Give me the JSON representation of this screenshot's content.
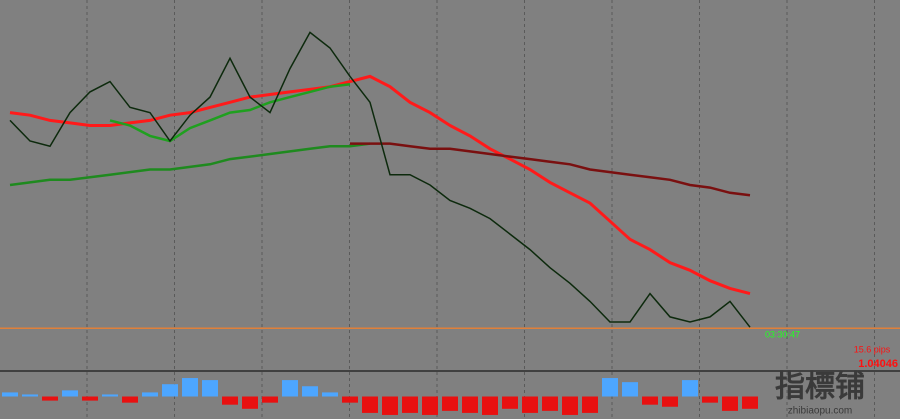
{
  "chart_data": [
    {
      "type": "line",
      "x": [
        0,
        1,
        2,
        3,
        4,
        5,
        6,
        7,
        8,
        9,
        10,
        11,
        12,
        13,
        14,
        15,
        16,
        17,
        18,
        19,
        20,
        21,
        22,
        23,
        24,
        25,
        26,
        27,
        28,
        29,
        30,
        31,
        32,
        33,
        34,
        35,
        36,
        37
      ],
      "xlim": [
        -0.5,
        44.5
      ],
      "ylim": [
        1.039,
        1.053
      ],
      "grid": true,
      "series": [
        {
          "color": "#ff1a1a",
          "width": 3,
          "values": [
            1.0488,
            1.0487,
            1.0485,
            1.0484,
            1.0483,
            1.0483,
            1.0484,
            1.0485,
            1.0487,
            1.0488,
            1.049,
            1.0492,
            1.0494,
            1.0495,
            1.0496,
            1.0497,
            1.0498,
            1.05,
            1.0502,
            1.0498,
            1.0492,
            1.0488,
            1.0483,
            1.0479,
            1.0474,
            1.047,
            1.0466,
            1.0461,
            1.0457,
            1.0453,
            1.0446,
            1.0439,
            1.0435,
            1.043,
            1.0427,
            1.0423,
            1.042,
            1.0418
          ]
        },
        {
          "color": "#1f8a1f",
          "width": 2.5,
          "values": [
            1.046,
            1.0461,
            1.0462,
            1.0462,
            1.0463,
            1.0464,
            1.0465,
            1.0466,
            1.0466,
            1.0467,
            1.0468,
            1.047,
            1.0471,
            1.0472,
            1.0473,
            1.0474,
            1.0475,
            1.0475,
            1.0476,
            null,
            null,
            null,
            null,
            null,
            null,
            null,
            null,
            null,
            null,
            null,
            null,
            null,
            null,
            null,
            null,
            null,
            null,
            null
          ]
        },
        {
          "color": "#7a1010",
          "width": 2.5,
          "values": [
            null,
            null,
            null,
            null,
            null,
            null,
            null,
            null,
            null,
            null,
            null,
            null,
            null,
            null,
            null,
            null,
            null,
            1.0476,
            1.0476,
            1.0476,
            1.0475,
            1.0474,
            1.0474,
            1.0473,
            1.0472,
            1.0471,
            1.047,
            1.0469,
            1.0468,
            1.0466,
            1.0465,
            1.0464,
            1.0463,
            1.0462,
            1.046,
            1.0459,
            1.0457,
            1.0456
          ]
        },
        {
          "color": "#1fa01f",
          "width": 2.5,
          "values": [
            null,
            null,
            null,
            null,
            null,
            1.0485,
            1.0483,
            1.0479,
            1.0477,
            1.0482,
            1.0485,
            1.0488,
            1.0489,
            1.0492,
            1.0494,
            1.0496,
            1.0498,
            1.0499,
            null,
            null,
            null,
            null,
            null,
            null,
            null,
            null,
            null,
            null,
            null,
            null,
            null,
            null,
            null,
            null,
            null,
            null,
            null,
            null
          ]
        },
        {
          "color": "#0d2a0d",
          "width": 1.5,
          "values": [
            1.0485,
            1.0477,
            1.0475,
            1.0488,
            1.0496,
            1.05,
            1.049,
            1.0488,
            1.0477,
            1.0487,
            1.0494,
            1.0509,
            1.0494,
            1.0488,
            1.0505,
            1.0519,
            1.0513,
            1.0502,
            1.0492,
            1.0464,
            1.0464,
            1.046,
            1.0454,
            1.0451,
            1.0447,
            1.0441,
            1.0435,
            1.0428,
            1.0422,
            1.0415,
            1.0407,
            1.0407,
            1.0418,
            1.0409,
            1.0407,
            1.0409,
            1.0415,
            1.0405
          ]
        }
      ],
      "last_price": 1.04046,
      "last_price_color": "#e0803a",
      "time_label": "03:30:47",
      "annotation": "15.6 pips"
    },
    {
      "type": "bar",
      "x": [
        0,
        1,
        2,
        3,
        4,
        5,
        6,
        7,
        8,
        9,
        10,
        11,
        12,
        13,
        14,
        15,
        16,
        17,
        18,
        19,
        20,
        21,
        22,
        23,
        24,
        25,
        26,
        27,
        28,
        29,
        30,
        31,
        32,
        33,
        34,
        35,
        36,
        37
      ],
      "xlim": [
        -0.5,
        44.5
      ],
      "ylim": [
        -1,
        1
      ],
      "up_color": "#4da6ff",
      "down_color": "#e81010",
      "values": [
        0.2,
        0.1,
        -0.2,
        0.3,
        -0.2,
        0.1,
        -0.3,
        0.2,
        0.6,
        0.9,
        0.8,
        -0.4,
        -0.6,
        -0.3,
        0.8,
        0.5,
        0.2,
        -0.3,
        -0.8,
        -0.9,
        -0.8,
        -0.9,
        -0.7,
        -0.8,
        -0.9,
        -0.6,
        -0.8,
        -0.7,
        -0.9,
        -0.8,
        0.9,
        0.7,
        -0.4,
        -0.5,
        0.8,
        -0.3,
        -0.7,
        -0.6
      ]
    }
  ],
  "watermark": {
    "title": "指標铺",
    "url": "zhibiaopu.com"
  }
}
